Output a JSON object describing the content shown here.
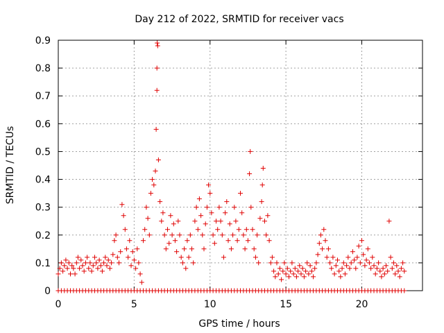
{
  "chart_data": {
    "type": "scatter",
    "title": "Day 212 of 2022, SRMTID for receiver vacs",
    "xlabel": "GPS time / hours",
    "ylabel": "SRMTID / TECUs",
    "xlim": [
      0,
      24
    ],
    "ylim": [
      0,
      0.9
    ],
    "x_ticks": [
      0,
      5,
      10,
      15,
      20
    ],
    "x_tick_labels": [
      "0",
      "5",
      "10",
      "15",
      "20"
    ],
    "y_ticks": [
      0,
      0.1,
      0.2,
      0.3,
      0.4,
      0.5,
      0.6,
      0.7,
      0.8,
      0.9
    ],
    "y_tick_labels": [
      "0",
      "0.1",
      "0.2",
      "0.3",
      "0.4",
      "0.5",
      "0.6",
      "0.7",
      "0.8",
      "0.9"
    ],
    "grid": true,
    "marker": "+",
    "marker_color": "#e00000",
    "series": [
      {
        "name": "SRMTID",
        "points": [
          [
            0.0,
            0.06
          ],
          [
            0.1,
            0.08
          ],
          [
            0.2,
            0.1
          ],
          [
            0.3,
            0.07
          ],
          [
            0.4,
            0.09
          ],
          [
            0.5,
            0.11
          ],
          [
            0.6,
            0.08
          ],
          [
            0.7,
            0.1
          ],
          [
            0.8,
            0.06
          ],
          [
            0.9,
            0.09
          ],
          [
            1.0,
            0.08
          ],
          [
            1.1,
            0.06
          ],
          [
            1.2,
            0.1
          ],
          [
            1.3,
            0.12
          ],
          [
            1.4,
            0.08
          ],
          [
            1.5,
            0.11
          ],
          [
            1.6,
            0.09
          ],
          [
            1.7,
            0.07
          ],
          [
            1.8,
            0.1
          ],
          [
            1.9,
            0.12
          ],
          [
            2.0,
            0.08
          ],
          [
            2.1,
            0.1
          ],
          [
            2.2,
            0.07
          ],
          [
            2.3,
            0.09
          ],
          [
            2.4,
            0.12
          ],
          [
            2.5,
            0.1
          ],
          [
            2.6,
            0.08
          ],
          [
            2.7,
            0.11
          ],
          [
            2.8,
            0.09
          ],
          [
            2.9,
            0.07
          ],
          [
            3.0,
            0.1
          ],
          [
            3.1,
            0.12
          ],
          [
            3.2,
            0.09
          ],
          [
            3.3,
            0.11
          ],
          [
            3.4,
            0.08
          ],
          [
            3.5,
            0.1
          ],
          [
            3.6,
            0.13
          ],
          [
            3.7,
            0.18
          ],
          [
            3.8,
            0.2
          ],
          [
            3.9,
            0.12
          ],
          [
            4.0,
            0.1
          ],
          [
            4.1,
            0.14
          ],
          [
            4.2,
            0.31
          ],
          [
            4.3,
            0.27
          ],
          [
            4.4,
            0.22
          ],
          [
            4.5,
            0.15
          ],
          [
            4.6,
            0.12
          ],
          [
            4.7,
            0.18
          ],
          [
            4.8,
            0.09
          ],
          [
            4.9,
            0.14
          ],
          [
            5.0,
            0.11
          ],
          [
            5.1,
            0.08
          ],
          [
            5.2,
            0.15
          ],
          [
            5.3,
            0.1
          ],
          [
            5.4,
            0.06
          ],
          [
            5.5,
            0.03
          ],
          [
            5.6,
            0.18
          ],
          [
            5.7,
            0.22
          ],
          [
            5.8,
            0.3
          ],
          [
            5.9,
            0.26
          ],
          [
            6.0,
            0.2
          ],
          [
            6.1,
            0.35
          ],
          [
            6.2,
            0.4
          ],
          [
            6.3,
            0.38
          ],
          [
            6.4,
            0.43
          ],
          [
            6.45,
            0.58
          ],
          [
            6.5,
            0.72
          ],
          [
            6.5,
            0.8
          ],
          [
            6.52,
            0.89
          ],
          [
            6.55,
            0.88
          ],
          [
            6.6,
            0.47
          ],
          [
            6.7,
            0.32
          ],
          [
            6.8,
            0.25
          ],
          [
            6.9,
            0.28
          ],
          [
            7.0,
            0.2
          ],
          [
            7.1,
            0.15
          ],
          [
            7.2,
            0.22
          ],
          [
            7.3,
            0.17
          ],
          [
            7.4,
            0.27
          ],
          [
            7.5,
            0.2
          ],
          [
            7.6,
            0.24
          ],
          [
            7.7,
            0.18
          ],
          [
            7.8,
            0.14
          ],
          [
            7.9,
            0.25
          ],
          [
            8.0,
            0.2
          ],
          [
            8.1,
            0.12
          ],
          [
            8.2,
            0.1
          ],
          [
            8.3,
            0.15
          ],
          [
            8.4,
            0.08
          ],
          [
            8.5,
            0.18
          ],
          [
            8.6,
            0.12
          ],
          [
            8.7,
            0.2
          ],
          [
            8.8,
            0.15
          ],
          [
            8.9,
            0.1
          ],
          [
            9.0,
            0.25
          ],
          [
            9.1,
            0.3
          ],
          [
            9.2,
            0.22
          ],
          [
            9.3,
            0.33
          ],
          [
            9.4,
            0.27
          ],
          [
            9.5,
            0.2
          ],
          [
            9.6,
            0.15
          ],
          [
            9.7,
            0.24
          ],
          [
            9.8,
            0.3
          ],
          [
            9.9,
            0.38
          ],
          [
            10.0,
            0.35
          ],
          [
            10.1,
            0.28
          ],
          [
            10.2,
            0.2
          ],
          [
            10.3,
            0.17
          ],
          [
            10.4,
            0.25
          ],
          [
            10.5,
            0.22
          ],
          [
            10.6,
            0.3
          ],
          [
            10.7,
            0.25
          ],
          [
            10.8,
            0.2
          ],
          [
            10.9,
            0.12
          ],
          [
            11.0,
            0.28
          ],
          [
            11.1,
            0.32
          ],
          [
            11.2,
            0.18
          ],
          [
            11.3,
            0.24
          ],
          [
            11.4,
            0.15
          ],
          [
            11.5,
            0.2
          ],
          [
            11.6,
            0.3
          ],
          [
            11.7,
            0.25
          ],
          [
            11.8,
            0.18
          ],
          [
            11.9,
            0.22
          ],
          [
            12.0,
            0.35
          ],
          [
            12.1,
            0.28
          ],
          [
            12.2,
            0.2
          ],
          [
            12.3,
            0.15
          ],
          [
            12.4,
            0.22
          ],
          [
            12.5,
            0.18
          ],
          [
            12.6,
            0.42
          ],
          [
            12.65,
            0.5
          ],
          [
            12.7,
            0.3
          ],
          [
            12.8,
            0.22
          ],
          [
            12.9,
            0.15
          ],
          [
            13.0,
            0.12
          ],
          [
            13.1,
            0.2
          ],
          [
            13.2,
            0.1
          ],
          [
            13.3,
            0.26
          ],
          [
            13.4,
            0.32
          ],
          [
            13.45,
            0.38
          ],
          [
            13.5,
            0.44
          ],
          [
            13.6,
            0.25
          ],
          [
            13.7,
            0.2
          ],
          [
            13.8,
            0.27
          ],
          [
            13.9,
            0.18
          ],
          [
            14.0,
            0.1
          ],
          [
            14.1,
            0.12
          ],
          [
            14.2,
            0.07
          ],
          [
            14.3,
            0.05
          ],
          [
            14.4,
            0.1
          ],
          [
            14.5,
            0.06
          ],
          [
            14.6,
            0.08
          ],
          [
            14.7,
            0.04
          ],
          [
            14.8,
            0.07
          ],
          [
            14.9,
            0.1
          ],
          [
            15.0,
            0.06
          ],
          [
            15.1,
            0.08
          ],
          [
            15.2,
            0.05
          ],
          [
            15.3,
            0.07
          ],
          [
            15.4,
            0.1
          ],
          [
            15.5,
            0.06
          ],
          [
            15.6,
            0.08
          ],
          [
            15.7,
            0.05
          ],
          [
            15.8,
            0.07
          ],
          [
            15.9,
            0.09
          ],
          [
            16.0,
            0.06
          ],
          [
            16.1,
            0.08
          ],
          [
            16.2,
            0.05
          ],
          [
            16.3,
            0.07
          ],
          [
            16.4,
            0.1
          ],
          [
            16.5,
            0.06
          ],
          [
            16.6,
            0.09
          ],
          [
            16.7,
            0.07
          ],
          [
            16.8,
            0.05
          ],
          [
            16.9,
            0.08
          ],
          [
            17.0,
            0.1
          ],
          [
            17.1,
            0.13
          ],
          [
            17.2,
            0.17
          ],
          [
            17.3,
            0.2
          ],
          [
            17.4,
            0.15
          ],
          [
            17.5,
            0.22
          ],
          [
            17.6,
            0.18
          ],
          [
            17.7,
            0.12
          ],
          [
            17.8,
            0.15
          ],
          [
            17.9,
            0.1
          ],
          [
            18.0,
            0.08
          ],
          [
            18.1,
            0.12
          ],
          [
            18.2,
            0.06
          ],
          [
            18.3,
            0.09
          ],
          [
            18.4,
            0.11
          ],
          [
            18.5,
            0.07
          ],
          [
            18.6,
            0.05
          ],
          [
            18.7,
            0.08
          ],
          [
            18.8,
            0.1
          ],
          [
            18.9,
            0.06
          ],
          [
            19.0,
            0.09
          ],
          [
            19.1,
            0.12
          ],
          [
            19.2,
            0.08
          ],
          [
            19.3,
            0.1
          ],
          [
            19.4,
            0.14
          ],
          [
            19.5,
            0.11
          ],
          [
            19.6,
            0.08
          ],
          [
            19.7,
            0.12
          ],
          [
            19.8,
            0.16
          ],
          [
            19.9,
            0.1
          ],
          [
            20.0,
            0.18
          ],
          [
            20.1,
            0.13
          ],
          [
            20.2,
            0.09
          ],
          [
            20.3,
            0.11
          ],
          [
            20.4,
            0.15
          ],
          [
            20.5,
            0.1
          ],
          [
            20.6,
            0.08
          ],
          [
            20.7,
            0.12
          ],
          [
            20.8,
            0.09
          ],
          [
            20.9,
            0.06
          ],
          [
            21.0,
            0.08
          ],
          [
            21.1,
            0.1
          ],
          [
            21.2,
            0.07
          ],
          [
            21.3,
            0.05
          ],
          [
            21.4,
            0.08
          ],
          [
            21.5,
            0.06
          ],
          [
            21.6,
            0.09
          ],
          [
            21.7,
            0.07
          ],
          [
            21.8,
            0.25
          ],
          [
            21.9,
            0.12
          ],
          [
            22.0,
            0.08
          ],
          [
            22.1,
            0.1
          ],
          [
            22.2,
            0.06
          ],
          [
            22.3,
            0.09
          ],
          [
            22.4,
            0.07
          ],
          [
            22.5,
            0.05
          ],
          [
            22.6,
            0.08
          ],
          [
            22.7,
            0.1
          ],
          [
            22.8,
            0.07
          ]
        ]
      }
    ],
    "zero_points": [
      0.0,
      0.2,
      0.4,
      0.6,
      0.8,
      1.0,
      1.2,
      1.4,
      1.6,
      1.8,
      2.0,
      2.2,
      2.4,
      2.6,
      2.8,
      3.0,
      3.2,
      3.4,
      3.6,
      3.8,
      4.0,
      4.2,
      4.4,
      4.6,
      4.8,
      5.0,
      5.2,
      5.4,
      5.6,
      5.8,
      6.0,
      6.2,
      6.4,
      6.6,
      6.8,
      7.0,
      7.2,
      7.4,
      7.6,
      7.8,
      8.0,
      8.2,
      8.4,
      8.6,
      8.8,
      9.0,
      9.2,
      9.4,
      9.6,
      9.8,
      10.0,
      10.2,
      10.4,
      10.6,
      10.8,
      11.0,
      11.2,
      11.4,
      11.6,
      11.8,
      12.0,
      12.2,
      12.4,
      12.6,
      12.8,
      13.0,
      13.2,
      13.4,
      13.6,
      13.8,
      14.0,
      14.2,
      14.4,
      14.6,
      14.8,
      15.0,
      15.2,
      15.4,
      15.6,
      15.8,
      16.0,
      16.2,
      16.4,
      16.6,
      16.8,
      17.0,
      17.2,
      17.4,
      17.6,
      17.8,
      18.0,
      18.2,
      18.4,
      18.6,
      18.8,
      19.0,
      19.2,
      19.4,
      19.6,
      19.8,
      20.0,
      20.2,
      20.4,
      20.6,
      20.8,
      21.0,
      21.2,
      21.4,
      21.6,
      21.8,
      22.0,
      22.2,
      22.4,
      22.6,
      22.8
    ]
  }
}
